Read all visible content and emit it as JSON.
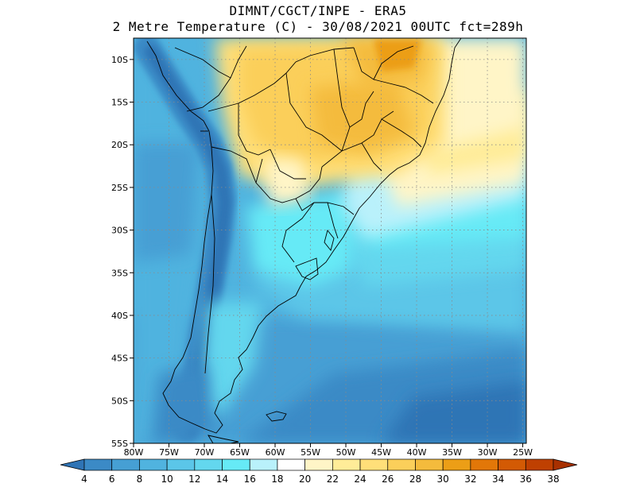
{
  "title": {
    "line1": "DIMNT/CGCT/INPE -  ERA5",
    "line2": "2 Metre Temperature (C) -  30/08/2021 00UTC fct=289h"
  },
  "map": {
    "lon_range": [
      -80,
      -24.5
    ],
    "lat_range": [
      -55,
      -7.5
    ],
    "lon_ticks": [
      "80W",
      "75W",
      "70W",
      "65W",
      "60W",
      "55W",
      "50W",
      "45W",
      "40W",
      "35W",
      "30W",
      "25W"
    ],
    "lat_ticks": [
      "10S",
      "15S",
      "20S",
      "25S",
      "30S",
      "35S",
      "40S",
      "45S",
      "50S",
      "55S"
    ],
    "grid": "dotted"
  },
  "colorbar": {
    "labels": [
      "4",
      "6",
      "8",
      "10",
      "12",
      "14",
      "16",
      "18",
      "20",
      "22",
      "24",
      "26",
      "28",
      "30",
      "32",
      "34",
      "36",
      "38"
    ],
    "colors": [
      "#2f74b5",
      "#3b8ac6",
      "#469fd4",
      "#50b3df",
      "#5bc6e8",
      "#63d7ee",
      "#66eaf6",
      "#b9f1fb",
      "#ffffff",
      "#fff5c7",
      "#ffec98",
      "#ffdf79",
      "#fbcf5a",
      "#f4bb3c",
      "#ec9e16",
      "#e27708",
      "#d35a04",
      "#bf4001",
      "#a83000"
    ]
  }
}
